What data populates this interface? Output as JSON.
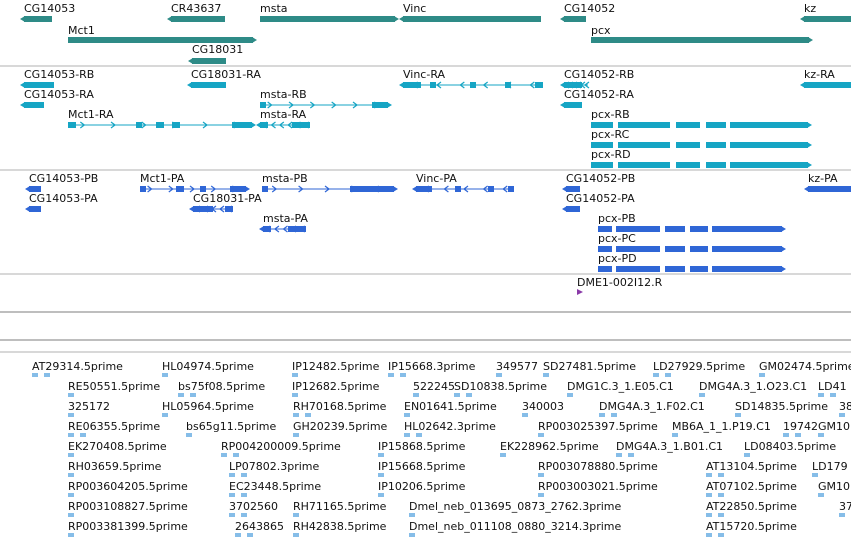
{
  "colors": {
    "gene": "#2e8b87",
    "transcript": "#16a5c4",
    "protein": "#2f66d6",
    "clone": "#8a3aa8",
    "est": "#86bde8",
    "separator": "#b0b0b0",
    "separator_dark": "#7c7c7c"
  },
  "tracks": {
    "genes": [
      {
        "label": "CG14053",
        "strand": "-"
      },
      {
        "label": "CR43637",
        "strand": "-"
      },
      {
        "label": "msta",
        "strand": "+"
      },
      {
        "label": "Vinc",
        "strand": "-"
      },
      {
        "label": "CG14052",
        "strand": "-"
      },
      {
        "label": "kz",
        "strand": "-"
      },
      {
        "label": "Mct1",
        "strand": "+"
      },
      {
        "label": "pcx",
        "strand": "+"
      },
      {
        "label": "CG18031",
        "strand": "-"
      }
    ],
    "transcripts": [
      {
        "label": "CG14053-RB"
      },
      {
        "label": "CG18031-RA"
      },
      {
        "label": "Vinc-RA"
      },
      {
        "label": "CG14052-RB"
      },
      {
        "label": "kz-RA"
      },
      {
        "label": "CG14053-RA"
      },
      {
        "label": "msta-RB"
      },
      {
        "label": "CG14052-RA"
      },
      {
        "label": "Mct1-RA"
      },
      {
        "label": "msta-RA"
      },
      {
        "label": "pcx-RB"
      },
      {
        "label": "pcx-RC"
      },
      {
        "label": "pcx-RD"
      }
    ],
    "proteins": [
      {
        "label": "CG14053-PB"
      },
      {
        "label": "Mct1-PA"
      },
      {
        "label": "msta-PB"
      },
      {
        "label": "Vinc-PA"
      },
      {
        "label": "CG14052-PB"
      },
      {
        "label": "kz-PA"
      },
      {
        "label": "CG14053-PA"
      },
      {
        "label": "CG18031-PA"
      },
      {
        "label": "CG14052-PA"
      },
      {
        "label": "pcx-PB"
      },
      {
        "label": "msta-PA"
      },
      {
        "label": "pcx-PC"
      },
      {
        "label": "pcx-PD"
      }
    ],
    "clones": [
      {
        "label": "DME1-002I12.R"
      }
    ],
    "ests": [
      {
        "label": "AT29314.5prime"
      },
      {
        "label": "HL04974.5prime"
      },
      {
        "label": "IP12482.5prime"
      },
      {
        "label": "IP15668.3prime"
      },
      {
        "label": "349577"
      },
      {
        "label": "SD27481.5prime"
      },
      {
        "label": "LD27929.5prime"
      },
      {
        "label": "GM02474.5prime"
      },
      {
        "label": "RE50551.5prime"
      },
      {
        "label": "bs75f08.5prime"
      },
      {
        "label": "IP12682.5prime"
      },
      {
        "label": "522245"
      },
      {
        "label": "SD10838.5prime"
      },
      {
        "label": "DMG1C.3_1.E05.C1"
      },
      {
        "label": "DMG4A.3_1.O23.C1"
      },
      {
        "label": "LD41"
      },
      {
        "label": "325172"
      },
      {
        "label": "HL05964.5prime"
      },
      {
        "label": "RH70168.5prime"
      },
      {
        "label": "EN01641.5prime"
      },
      {
        "label": "340003"
      },
      {
        "label": "DMG4A.3_1.F02.C1"
      },
      {
        "label": "SD14835.5prime"
      },
      {
        "label": "38"
      },
      {
        "label": "RE06355.5prime"
      },
      {
        "label": "bs65g11.5prime"
      },
      {
        "label": "GH20239.5prime"
      },
      {
        "label": "HL02642.3prime"
      },
      {
        "label": "RP003025397.5prime"
      },
      {
        "label": "MB6A_1_1.P19.C1"
      },
      {
        "label": "19742"
      },
      {
        "label": "GM10"
      },
      {
        "label": "EK270408.5prime"
      },
      {
        "label": "RP004200009.5prime"
      },
      {
        "label": "IP15868.5prime"
      },
      {
        "label": "EK228962.5prime"
      },
      {
        "label": "DMG4A.3_1.B01.C1"
      },
      {
        "label": "LD08403.5prime"
      },
      {
        "label": "RH03659.5prime"
      },
      {
        "label": "LP07802.3prime"
      },
      {
        "label": "IP15668.5prime"
      },
      {
        "label": "RP003078880.5prime"
      },
      {
        "label": "AT13104.5prime"
      },
      {
        "label": "LD179"
      },
      {
        "label": "RP003604205.5prime"
      },
      {
        "label": "EC23448.5prime"
      },
      {
        "label": "IP10206.5prime"
      },
      {
        "label": "RP003003021.5prime"
      },
      {
        "label": "AT07102.5prime"
      },
      {
        "label": "GM10"
      },
      {
        "label": "RP003108827.5prime"
      },
      {
        "label": "3702560"
      },
      {
        "label": "RH71165.5prime"
      },
      {
        "label": "Dmel_neb_013695_0873_2762.3prime"
      },
      {
        "label": "AT22850.5prime"
      },
      {
        "label": "37"
      },
      {
        "label": "RP003381399.5prime"
      },
      {
        "label": "2643865"
      },
      {
        "label": "RH42838.5prime"
      },
      {
        "label": "Dmel_neb_011108_0880_3214.3prime"
      },
      {
        "label": "AT15720.5prime"
      }
    ]
  }
}
